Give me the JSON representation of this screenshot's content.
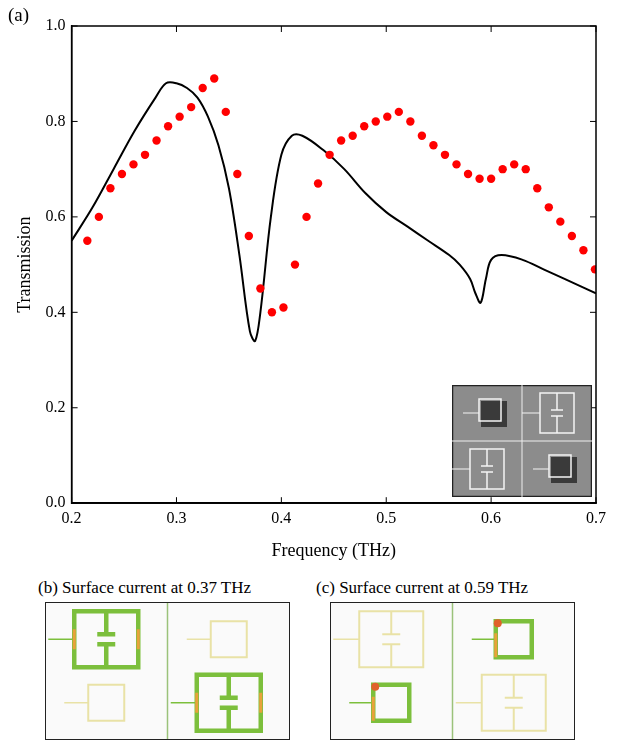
{
  "chart_data": {
    "type": "scatter",
    "panel": "(a)",
    "x_label": "Frequency (THz)",
    "y_label": "Transmission",
    "xlim": [
      0.2,
      0.7
    ],
    "xticks": [
      0.2,
      0.3,
      0.4,
      0.5,
      0.6,
      0.7
    ],
    "ylim": [
      0,
      1
    ],
    "yticks": [
      {
        "value": 0,
        "label": "0.0"
      },
      0.2,
      0.4,
      0.6,
      0.8,
      {
        "value": 1,
        "label": "1.0"
      }
    ],
    "grid": false,
    "series": [
      {
        "type": "line",
        "color": "#000000",
        "line_style": "solid",
        "x": [
          0.2,
          0.22,
          0.24,
          0.26,
          0.28,
          0.29,
          0.3,
          0.31,
          0.32,
          0.33,
          0.34,
          0.35,
          0.36,
          0.37,
          0.375,
          0.38,
          0.39,
          0.4,
          0.41,
          0.42,
          0.44,
          0.46,
          0.48,
          0.5,
          0.52,
          0.54,
          0.56,
          0.57,
          0.58,
          0.585,
          0.59,
          0.595,
          0.6,
          0.61,
          0.63,
          0.65,
          0.67,
          0.7
        ],
        "values": [
          0.55,
          0.62,
          0.7,
          0.78,
          0.85,
          0.88,
          0.88,
          0.87,
          0.85,
          0.81,
          0.75,
          0.66,
          0.52,
          0.36,
          0.34,
          0.4,
          0.6,
          0.73,
          0.77,
          0.77,
          0.74,
          0.7,
          0.65,
          0.61,
          0.58,
          0.55,
          0.52,
          0.5,
          0.47,
          0.44,
          0.42,
          0.47,
          0.51,
          0.52,
          0.51,
          0.49,
          0.47,
          0.44
        ]
      },
      {
        "type": "scatter",
        "color": "#ff0000",
        "marker": "circle",
        "x": [
          0.215,
          0.226,
          0.237,
          0.248,
          0.259,
          0.27,
          0.281,
          0.292,
          0.303,
          0.314,
          0.325,
          0.336,
          0.347,
          0.358,
          0.369,
          0.38,
          0.391,
          0.402,
          0.413,
          0.424,
          0.435,
          0.446,
          0.457,
          0.468,
          0.479,
          0.49,
          0.501,
          0.512,
          0.523,
          0.534,
          0.545,
          0.556,
          0.567,
          0.578,
          0.589,
          0.6,
          0.611,
          0.622,
          0.633,
          0.644,
          0.655,
          0.666,
          0.677,
          0.688,
          0.699
        ],
        "values": [
          0.55,
          0.6,
          0.66,
          0.69,
          0.71,
          0.73,
          0.76,
          0.79,
          0.81,
          0.83,
          0.87,
          0.89,
          0.82,
          0.69,
          0.56,
          0.45,
          0.4,
          0.41,
          0.5,
          0.6,
          0.67,
          0.73,
          0.76,
          0.77,
          0.79,
          0.8,
          0.81,
          0.82,
          0.8,
          0.77,
          0.75,
          0.73,
          0.71,
          0.69,
          0.68,
          0.68,
          0.7,
          0.71,
          0.7,
          0.66,
          0.62,
          0.59,
          0.56,
          0.53,
          0.49
        ]
      }
    ]
  },
  "panels": [
    {
      "label": "(b)",
      "title": "Surface current at 0.37 THz"
    },
    {
      "label": "(c)",
      "title": "Surface current at 0.59 THz"
    }
  ]
}
